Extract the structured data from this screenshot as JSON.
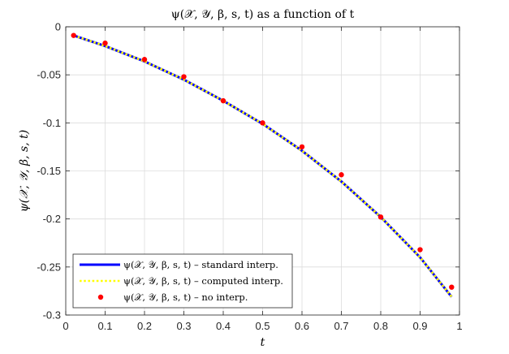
{
  "chart_data": {
    "type": "line",
    "title": "ψ(𝒳, 𝒴, β, s, t) as a function of t",
    "xlabel": "t",
    "ylabel": "ψ(𝒳, 𝒴, β, s, t)",
    "xlim": [
      0,
      1
    ],
    "ylim": [
      -0.3,
      0
    ],
    "xticks": [
      "0",
      "0.1",
      "0.2",
      "0.3",
      "0.4",
      "0.5",
      "0.6",
      "0.7",
      "0.8",
      "0.9",
      "1"
    ],
    "yticks": [
      "0",
      "-0.05",
      "-0.1",
      "-0.15",
      "-0.2",
      "-0.25",
      "-0.3"
    ],
    "grid": true,
    "legend_position": "bottom-left",
    "series": [
      {
        "name": "ψ(𝒳, 𝒴, β, s, t) – standard interp.",
        "style": "solid",
        "color": "#0000ff",
        "x": [
          0.02,
          0.1,
          0.2,
          0.3,
          0.4,
          0.5,
          0.6,
          0.7,
          0.8,
          0.9,
          0.98
        ],
        "y": [
          -0.009,
          -0.02,
          -0.036,
          -0.055,
          -0.077,
          -0.101,
          -0.129,
          -0.161,
          -0.198,
          -0.24,
          -0.281
        ]
      },
      {
        "name": "ψ(𝒳, 𝒴, β, s, t) – computed interp.",
        "style": "dotted",
        "color": "#ffff00",
        "x": [
          0.02,
          0.1,
          0.2,
          0.3,
          0.4,
          0.5,
          0.6,
          0.7,
          0.8,
          0.9,
          0.98
        ],
        "y": [
          -0.009,
          -0.02,
          -0.036,
          -0.055,
          -0.077,
          -0.101,
          -0.129,
          -0.161,
          -0.198,
          -0.24,
          -0.281
        ]
      },
      {
        "name": "ψ(𝒳, 𝒴, β, s, t) – no interp.",
        "style": "markers",
        "color": "#ff0000",
        "x": [
          0.02,
          0.1,
          0.2,
          0.3,
          0.4,
          0.5,
          0.6,
          0.7,
          0.8,
          0.9,
          0.98
        ],
        "y": [
          -0.009,
          -0.017,
          -0.034,
          -0.052,
          -0.077,
          -0.1,
          -0.125,
          -0.154,
          -0.198,
          -0.232,
          -0.271
        ]
      }
    ]
  }
}
